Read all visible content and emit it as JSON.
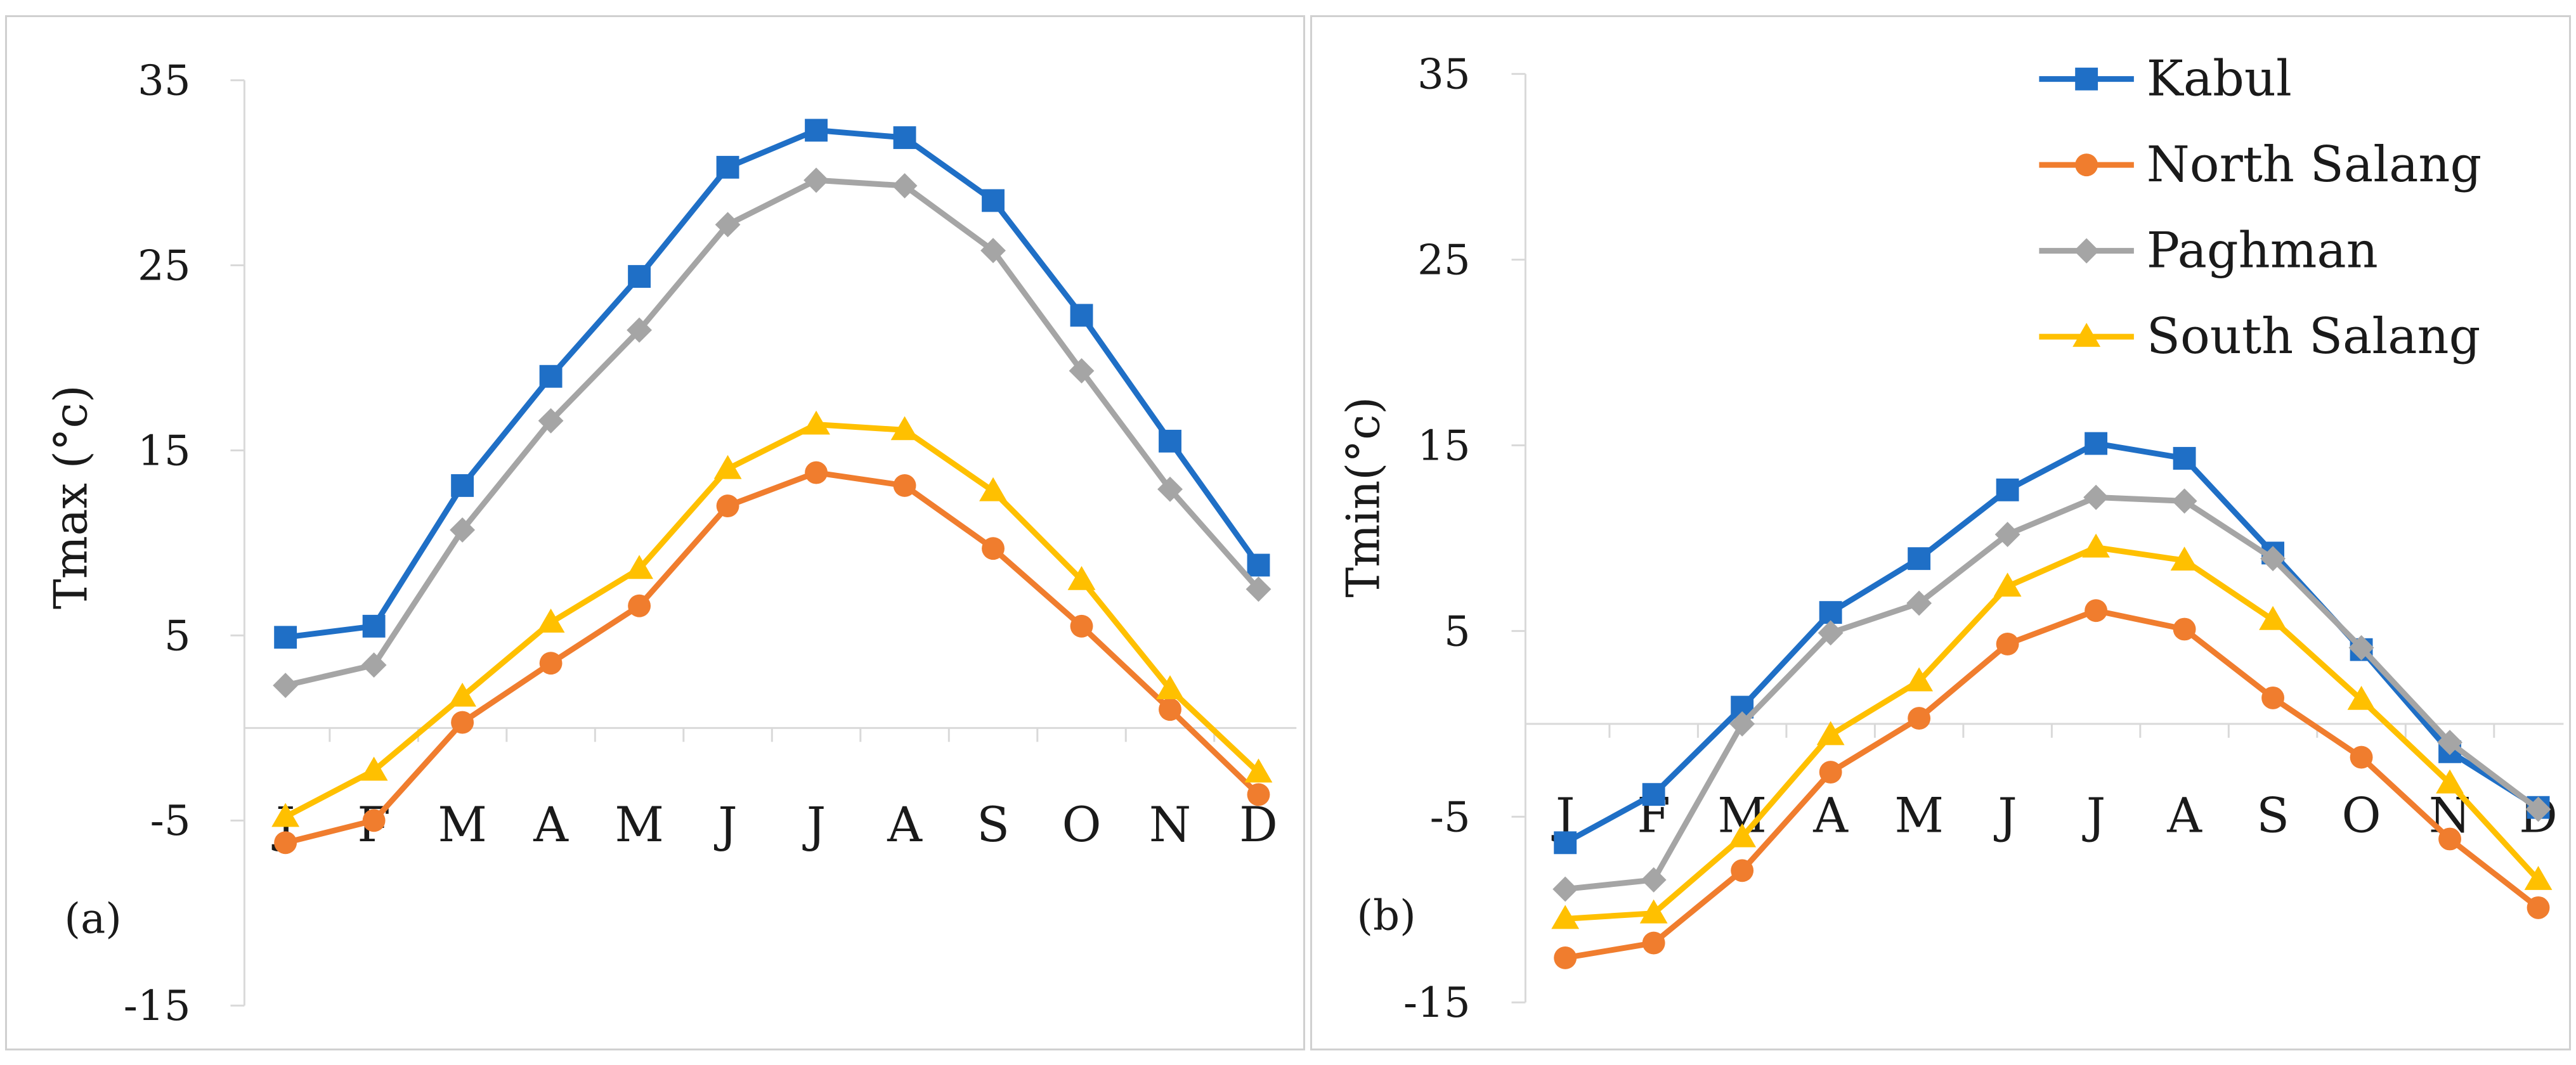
{
  "chart_data": [
    {
      "type": "line",
      "panel_label": "(a)",
      "ylabel": "Tmax (°c)",
      "xlabel": "",
      "categories": [
        "J",
        "F",
        "M",
        "A",
        "M",
        "J",
        "J",
        "A",
        "S",
        "O",
        "N",
        "D"
      ],
      "ylim": [
        -15,
        35
      ],
      "yticks": [
        "35",
        "25",
        "15",
        "5",
        "-5",
        "-15"
      ],
      "ytick_values": [
        35,
        25,
        15,
        5,
        -5,
        -15
      ],
      "grid": false,
      "series": [
        {
          "name": "Kabul",
          "color": "#1F6FC6",
          "marker": "square",
          "values": [
            4.9,
            5.5,
            13.1,
            19.0,
            24.4,
            30.3,
            32.3,
            31.9,
            28.5,
            22.3,
            15.5,
            8.8
          ]
        },
        {
          "name": "North Salang",
          "color": "#F07D2E",
          "marker": "circle",
          "values": [
            -6.2,
            -5.0,
            0.3,
            3.5,
            6.6,
            12.0,
            13.8,
            13.1,
            9.7,
            5.5,
            1.0,
            -3.6
          ]
        },
        {
          "name": "Paghman",
          "color": "#A5A5A5",
          "marker": "diamond",
          "values": [
            2.3,
            3.4,
            10.7,
            16.6,
            21.5,
            27.2,
            29.6,
            29.3,
            25.8,
            19.3,
            12.9,
            7.5
          ]
        },
        {
          "name": "South Salang",
          "color": "#FFC000",
          "marker": "triangle",
          "values": [
            -4.8,
            -2.3,
            1.7,
            5.7,
            8.6,
            14.0,
            16.4,
            16.1,
            12.8,
            8.0,
            2.1,
            -2.4
          ]
        }
      ]
    },
    {
      "type": "line",
      "panel_label": "(b)",
      "ylabel": "Tmin(°c)",
      "xlabel": "",
      "categories": [
        "J",
        "F",
        "M",
        "A",
        "M",
        "J",
        "J",
        "A",
        "S",
        "O",
        "N",
        "D"
      ],
      "ylim": [
        -15,
        35
      ],
      "yticks": [
        "35",
        "25",
        "15",
        "5",
        "-5",
        "-15"
      ],
      "ytick_values": [
        35,
        25,
        15,
        5,
        -5,
        -15
      ],
      "grid": false,
      "legend_position": "top-right",
      "series": [
        {
          "name": "Kabul",
          "color": "#1F6FC6",
          "marker": "square",
          "values": [
            -6.4,
            -3.8,
            0.9,
            6.0,
            8.9,
            12.6,
            15.1,
            14.3,
            9.2,
            4.0,
            -1.5,
            -4.5
          ]
        },
        {
          "name": "North Salang",
          "color": "#F07D2E",
          "marker": "circle",
          "values": [
            -12.6,
            -11.8,
            -7.9,
            -2.6,
            0.3,
            4.3,
            6.1,
            5.1,
            1.4,
            -1.8,
            -6.2,
            -9.9
          ]
        },
        {
          "name": "Paghman",
          "color": "#A5A5A5",
          "marker": "diamond",
          "values": [
            -8.9,
            -8.4,
            0.0,
            4.9,
            6.5,
            10.2,
            12.2,
            12.0,
            8.9,
            4.1,
            -1.0,
            -4.6
          ]
        },
        {
          "name": "South Salang",
          "color": "#FFC000",
          "marker": "triangle",
          "values": [
            -10.5,
            -10.2,
            -6.1,
            -0.6,
            2.3,
            7.4,
            9.5,
            8.8,
            5.6,
            1.3,
            -3.2,
            -8.4
          ]
        }
      ]
    }
  ]
}
